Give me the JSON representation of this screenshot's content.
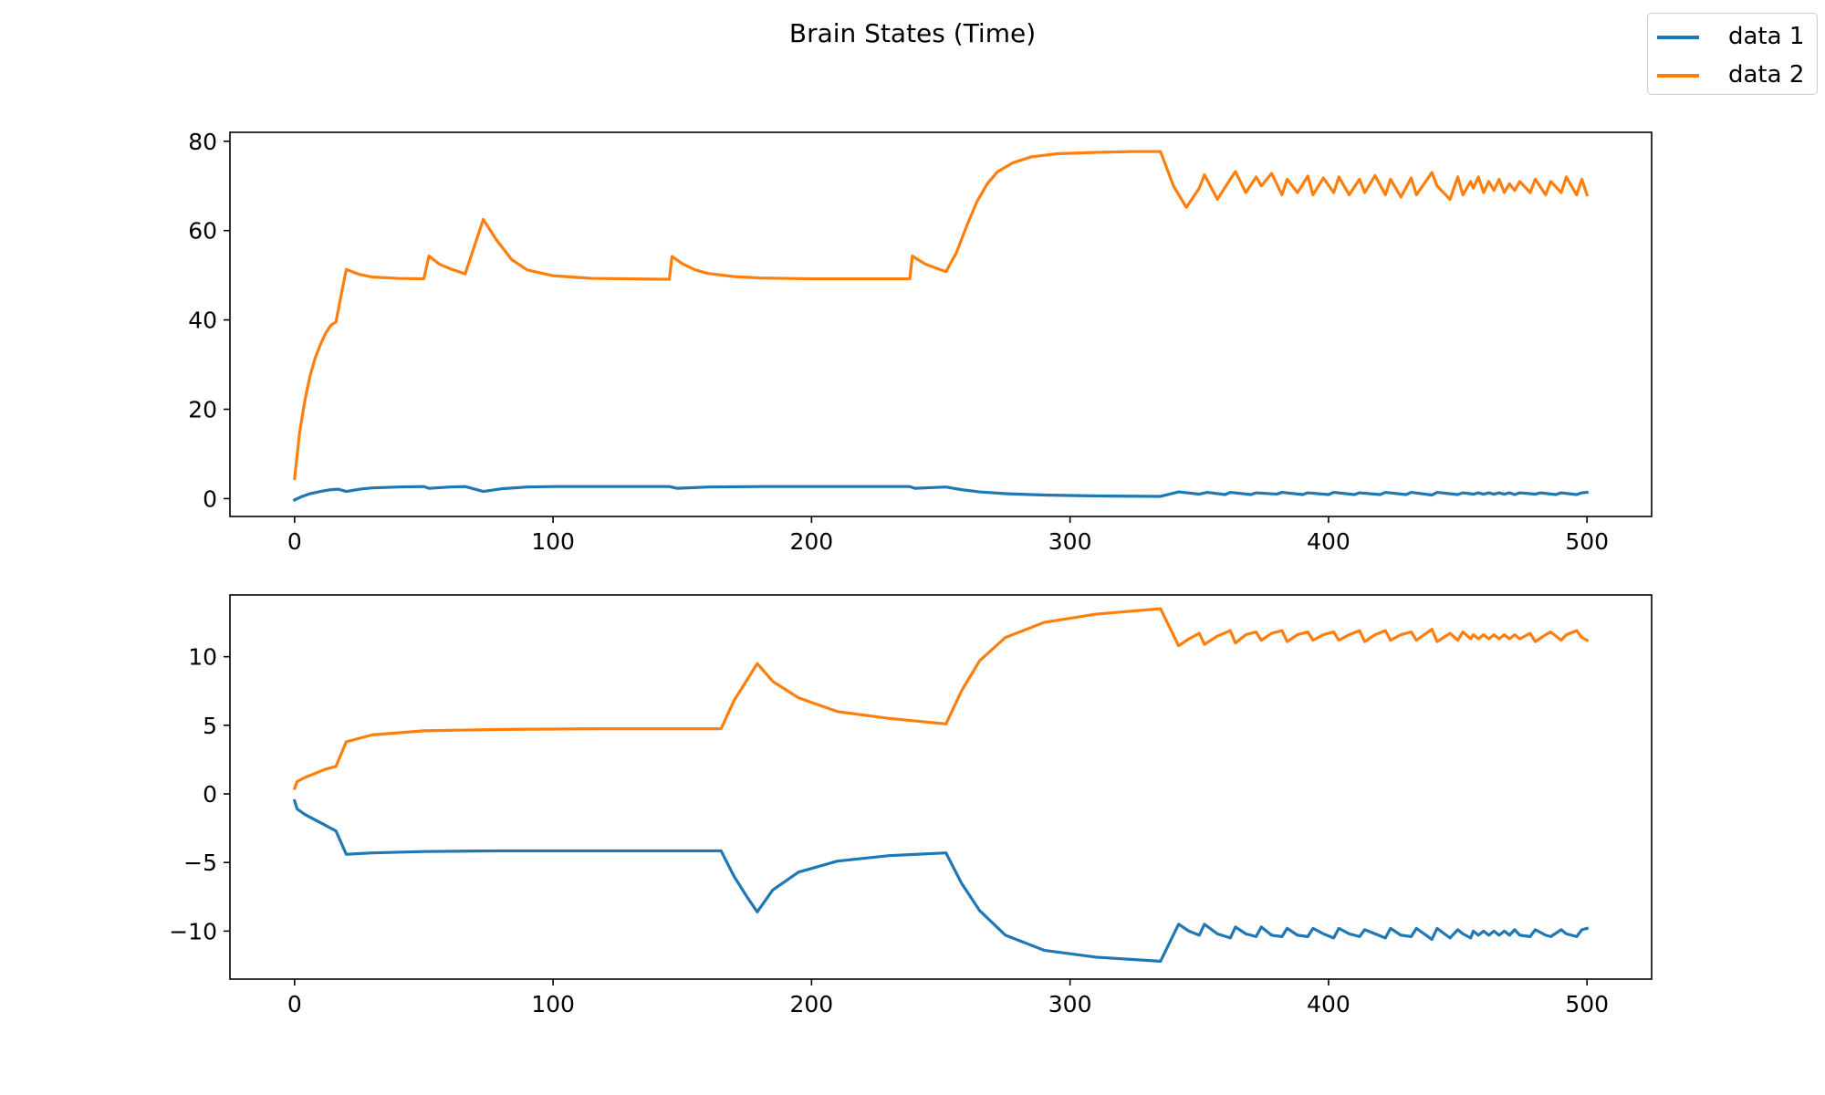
{
  "figure": {
    "title": "Brain States (Time)",
    "legend": [
      {
        "name": "data 1",
        "color": "#1f77b4"
      },
      {
        "name": "data 2",
        "color": "#ff7f0e"
      }
    ]
  },
  "chart_data": [
    {
      "type": "line",
      "title": "",
      "xlabel": "",
      "ylabel": "",
      "xlim": [
        -25,
        525
      ],
      "ylim": [
        -4,
        82
      ],
      "xticks": [
        0,
        100,
        200,
        300,
        400,
        500
      ],
      "yticks": [
        0,
        20,
        40,
        60,
        80
      ],
      "grid": false,
      "series": [
        {
          "name": "data 1",
          "color": "#1f77b4",
          "x": [
            0,
            3,
            6,
            10,
            14,
            17,
            20,
            25,
            30,
            40,
            50,
            52,
            60,
            66,
            73,
            80,
            90,
            100,
            120,
            140,
            145,
            148,
            160,
            180,
            200,
            220,
            238,
            240,
            252,
            258,
            265,
            275,
            290,
            310,
            335,
            342,
            350,
            353,
            360,
            362,
            370,
            372,
            380,
            382,
            390,
            392,
            400,
            402,
            410,
            412,
            420,
            422,
            430,
            432,
            440,
            442,
            450,
            452,
            456,
            458,
            460,
            462,
            464,
            466,
            468,
            470,
            472,
            474,
            480,
            482,
            488,
            490,
            496,
            498,
            500
          ],
          "y": [
            -0.3,
            0.5,
            1.1,
            1.6,
            2.0,
            2.1,
            1.6,
            2.1,
            2.4,
            2.6,
            2.7,
            2.3,
            2.6,
            2.7,
            1.6,
            2.2,
            2.6,
            2.7,
            2.7,
            2.7,
            2.7,
            2.3,
            2.6,
            2.7,
            2.7,
            2.7,
            2.7,
            2.3,
            2.6,
            2.0,
            1.5,
            1.1,
            0.8,
            0.6,
            0.5,
            1.5,
            1.0,
            1.4,
            0.9,
            1.4,
            0.9,
            1.3,
            1.0,
            1.4,
            0.9,
            1.3,
            0.9,
            1.4,
            0.9,
            1.3,
            0.9,
            1.4,
            0.9,
            1.4,
            0.8,
            1.4,
            0.9,
            1.3,
            1.0,
            1.3,
            1.0,
            1.3,
            1.0,
            1.3,
            1.0,
            1.3,
            0.9,
            1.3,
            1.0,
            1.3,
            0.9,
            1.3,
            0.9,
            1.3,
            1.4
          ]
        },
        {
          "name": "data 2",
          "color": "#ff7f0e",
          "x": [
            0,
            2,
            4,
            6,
            8,
            10,
            12,
            14,
            16,
            18,
            20,
            25,
            30,
            40,
            50,
            52,
            56,
            60,
            66,
            73,
            78,
            84,
            90,
            100,
            115,
            130,
            145,
            146,
            150,
            155,
            160,
            170,
            180,
            200,
            220,
            238,
            239,
            244,
            252,
            256,
            260,
            264,
            268,
            272,
            278,
            285,
            295,
            310,
            325,
            335,
            340,
            345,
            350,
            352,
            357,
            362,
            364,
            368,
            372,
            374,
            378,
            382,
            384,
            388,
            392,
            394,
            398,
            402,
            404,
            408,
            412,
            414,
            418,
            422,
            424,
            428,
            432,
            434,
            440,
            442,
            447,
            450,
            452,
            455,
            456,
            458,
            460,
            462,
            464,
            466,
            468,
            470,
            472,
            474,
            478,
            480,
            484,
            486,
            490,
            492,
            496,
            498,
            500
          ],
          "y": [
            4.5,
            15.0,
            22.0,
            27.5,
            31.5,
            34.5,
            37.0,
            38.8,
            39.5,
            45.5,
            51.3,
            50.2,
            49.6,
            49.3,
            49.2,
            54.3,
            52.5,
            51.5,
            50.3,
            62.5,
            58.0,
            53.5,
            51.2,
            49.9,
            49.3,
            49.2,
            49.1,
            54.2,
            52.6,
            51.2,
            50.4,
            49.7,
            49.4,
            49.2,
            49.2,
            49.2,
            54.3,
            52.5,
            50.8,
            55.0,
            61.0,
            66.5,
            70.5,
            73.2,
            75.2,
            76.5,
            77.2,
            77.5,
            77.7,
            77.7,
            70.0,
            65.2,
            69.5,
            72.5,
            67.0,
            71.5,
            73.2,
            68.5,
            72.0,
            70.0,
            72.8,
            68.0,
            71.5,
            68.5,
            72.2,
            68.0,
            71.8,
            68.5,
            72.0,
            68.0,
            71.5,
            68.5,
            72.3,
            68.0,
            71.5,
            67.5,
            71.8,
            68.0,
            73.0,
            70.0,
            67.0,
            72.0,
            68.0,
            71.0,
            69.5,
            72.0,
            68.5,
            71.0,
            69.0,
            71.5,
            68.5,
            70.5,
            69.0,
            71.0,
            68.5,
            71.5,
            68.0,
            71.0,
            68.5,
            72.0,
            68.0,
            71.5,
            68.0
          ]
        }
      ]
    },
    {
      "type": "line",
      "title": "",
      "xlabel": "",
      "ylabel": "",
      "xlim": [
        -25,
        525
      ],
      "ylim": [
        -13.5,
        14.5
      ],
      "xticks": [
        0,
        100,
        200,
        300,
        400,
        500
      ],
      "yticks": [
        -10,
        -5,
        0,
        5,
        10
      ],
      "ytick_labels": [
        "−10",
        "−5",
        "0",
        "5",
        "10"
      ],
      "grid": false,
      "series": [
        {
          "name": "data 1",
          "color": "#1f77b4",
          "x": [
            0,
            1,
            4,
            8,
            12,
            16,
            20,
            30,
            50,
            80,
            120,
            165,
            170,
            175,
            179,
            185,
            195,
            210,
            230,
            252,
            258,
            265,
            275,
            290,
            310,
            335,
            342,
            346,
            350,
            352,
            357,
            362,
            364,
            368,
            372,
            374,
            378,
            382,
            384,
            388,
            392,
            394,
            398,
            402,
            404,
            408,
            412,
            414,
            418,
            422,
            424,
            428,
            432,
            434,
            440,
            442,
            447,
            450,
            452,
            455,
            456,
            458,
            460,
            462,
            464,
            466,
            468,
            470,
            472,
            474,
            478,
            480,
            484,
            486,
            490,
            492,
            496,
            498,
            500
          ],
          "y": [
            -0.5,
            -1.1,
            -1.5,
            -1.9,
            -2.3,
            -2.7,
            -4.4,
            -4.3,
            -4.2,
            -4.15,
            -4.15,
            -4.15,
            -6.0,
            -7.5,
            -8.6,
            -7.0,
            -5.7,
            -4.9,
            -4.5,
            -4.3,
            -6.5,
            -8.5,
            -10.3,
            -11.4,
            -11.9,
            -12.2,
            -9.5,
            -10.0,
            -10.3,
            -9.5,
            -10.2,
            -10.5,
            -9.7,
            -10.2,
            -10.4,
            -9.7,
            -10.3,
            -10.4,
            -9.8,
            -10.3,
            -10.4,
            -9.8,
            -10.2,
            -10.5,
            -9.8,
            -10.2,
            -10.4,
            -9.9,
            -10.2,
            -10.5,
            -9.8,
            -10.3,
            -10.4,
            -9.8,
            -10.6,
            -9.8,
            -10.5,
            -9.9,
            -10.2,
            -10.5,
            -10.0,
            -10.3,
            -10.0,
            -10.3,
            -10.0,
            -10.3,
            -10.0,
            -10.3,
            -9.9,
            -10.3,
            -10.4,
            -9.9,
            -10.3,
            -10.4,
            -9.9,
            -10.2,
            -10.4,
            -9.9,
            -9.8
          ]
        },
        {
          "name": "data 2",
          "color": "#ff7f0e",
          "x": [
            0,
            1,
            4,
            8,
            12,
            16,
            20,
            30,
            50,
            80,
            120,
            165,
            170,
            175,
            179,
            185,
            195,
            210,
            230,
            252,
            258,
            265,
            275,
            290,
            310,
            335,
            342,
            346,
            350,
            352,
            357,
            362,
            364,
            368,
            372,
            374,
            378,
            382,
            384,
            388,
            392,
            394,
            398,
            402,
            404,
            408,
            412,
            414,
            418,
            422,
            424,
            428,
            432,
            434,
            440,
            442,
            447,
            450,
            452,
            455,
            456,
            458,
            460,
            462,
            464,
            466,
            468,
            470,
            472,
            474,
            478,
            480,
            484,
            486,
            490,
            492,
            496,
            498,
            500
          ],
          "y": [
            0.4,
            0.9,
            1.2,
            1.5,
            1.8,
            2.0,
            3.8,
            4.3,
            4.6,
            4.7,
            4.75,
            4.75,
            6.8,
            8.3,
            9.5,
            8.2,
            7.0,
            6.0,
            5.5,
            5.1,
            7.5,
            9.7,
            11.4,
            12.5,
            13.1,
            13.5,
            10.8,
            11.3,
            11.7,
            10.9,
            11.5,
            11.9,
            11.0,
            11.6,
            11.8,
            11.2,
            11.7,
            11.9,
            11.1,
            11.6,
            11.8,
            11.2,
            11.6,
            11.8,
            11.2,
            11.6,
            11.9,
            11.1,
            11.6,
            11.9,
            11.2,
            11.6,
            11.8,
            11.2,
            12.0,
            11.1,
            11.7,
            11.2,
            11.8,
            11.3,
            11.6,
            11.3,
            11.6,
            11.3,
            11.6,
            11.3,
            11.6,
            11.3,
            11.6,
            11.3,
            11.7,
            11.1,
            11.6,
            11.8,
            11.2,
            11.6,
            11.9,
            11.4,
            11.2
          ]
        }
      ]
    }
  ]
}
